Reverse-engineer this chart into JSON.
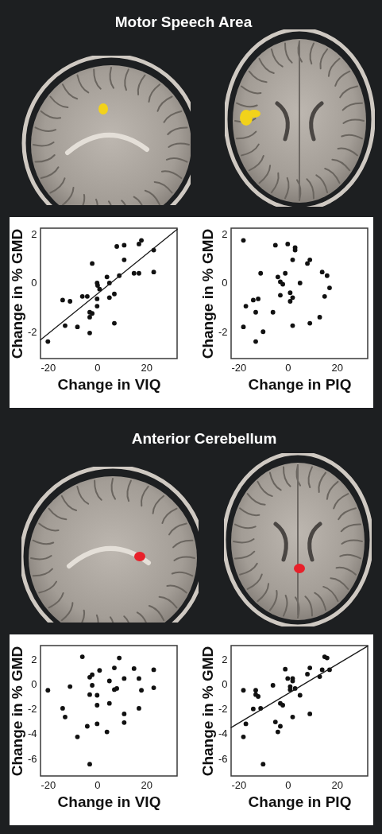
{
  "chart_data": [
    {
      "type": "scatter",
      "title": "Motor Speech Area",
      "xlabel": "Change in VIQ",
      "ylabel": "Change in % GMD",
      "xlim": [
        -23,
        32.5
      ],
      "ylim": [
        -3.1,
        2.25
      ],
      "xticks": [
        -20,
        0,
        20
      ],
      "yticks": [
        -2,
        0,
        2
      ],
      "marker": "circle",
      "series": [
        {
          "color": "#111111",
          "x": [
            -20,
            -14,
            -11,
            -13,
            -8,
            -6,
            -4,
            -2,
            -3,
            -3,
            -2,
            -3,
            0,
            0.2,
            1,
            0,
            0,
            4,
            5,
            5,
            7,
            7,
            9,
            8,
            11,
            11,
            15,
            17,
            17,
            18,
            23,
            23
          ],
          "values": [
            -2.4,
            -0.7,
            -0.75,
            -1.75,
            -1.8,
            -0.55,
            -0.55,
            0.8,
            -2.05,
            -1.2,
            -1.25,
            -1.4,
            0,
            -0.1,
            -0.25,
            -0.65,
            -0.95,
            0.25,
            0,
            -0.6,
            -0.45,
            -1.65,
            0.3,
            1.5,
            1.55,
            0.95,
            0.4,
            0.4,
            1.6,
            1.75,
            1.35,
            0.45
          ]
        },
        {
          "type": "line",
          "marker": "none",
          "color": "#1a1a1a",
          "x": [
            -23,
            32.5
          ],
          "values": [
            -2.33,
            2.2
          ]
        }
      ]
    },
    {
      "type": "scatter",
      "xlabel": "Change in PIQ",
      "ylabel": "Change in % GMD",
      "xlim": [
        -23,
        32.5
      ],
      "ylim": [
        -3.1,
        2.25
      ],
      "xticks": [
        -20,
        0,
        20
      ],
      "yticks": [
        -2,
        0,
        2
      ],
      "marker": "circle",
      "series": [
        {
          "color": "#111111",
          "x": [
            -18,
            -5,
            0,
            3,
            3,
            2,
            -11,
            -4,
            -1,
            -3,
            -2,
            5,
            8,
            9,
            14,
            16,
            17,
            15,
            -3,
            1,
            2,
            1,
            -14,
            -12,
            -17,
            -13,
            -6,
            13,
            9,
            2,
            -18,
            -10,
            -13
          ],
          "values": [
            1.75,
            1.55,
            1.6,
            1.45,
            1.35,
            0.95,
            0.4,
            0.25,
            0.4,
            0.05,
            -0.05,
            0,
            0.8,
            0.95,
            0.45,
            0.3,
            -0.2,
            -0.55,
            -0.5,
            -0.4,
            -0.6,
            -0.75,
            -0.7,
            -0.65,
            -0.95,
            -1.2,
            -1.2,
            -1.4,
            -1.65,
            -1.75,
            -1.8,
            -2,
            -2.4
          ]
        }
      ]
    },
    {
      "type": "scatter",
      "title": "Anterior Cerebellum",
      "xlabel": "Change in VIQ",
      "ylabel": "Change in % GMD",
      "xlim": [
        -23,
        32.5
      ],
      "ylim": [
        -7.4,
        3.1
      ],
      "xticks": [
        -20,
        0,
        20
      ],
      "yticks": [
        -6,
        -4,
        -2,
        0,
        2
      ],
      "marker": "circle",
      "series": [
        {
          "color": "#111111",
          "x": [
            -20,
            -6,
            -11,
            -14,
            -13,
            -8,
            -4,
            -3,
            -3,
            -2,
            -2,
            -3,
            0,
            0,
            0,
            1,
            4,
            5,
            5,
            7,
            7,
            8,
            9,
            11,
            11,
            11,
            15,
            17,
            17,
            18,
            23,
            23
          ],
          "values": [
            -0.5,
            2.2,
            -0.2,
            -1.95,
            -2.65,
            -4.25,
            -3.4,
            -6.45,
            0.55,
            0.75,
            -0.1,
            -0.85,
            -0.9,
            -1.7,
            -3.2,
            1.1,
            -3.85,
            0.25,
            -1.55,
            1.3,
            -0.45,
            -0.35,
            2.1,
            0.45,
            -2.4,
            -3.1,
            1.25,
            0.45,
            -1.95,
            -0.5,
            1.15,
            -0.3
          ]
        }
      ]
    },
    {
      "type": "scatter",
      "xlabel": "Change in PIQ",
      "ylabel": "Change in % GMD",
      "xlim": [
        -23,
        32.5
      ],
      "ylim": [
        -7.4,
        3.1
      ],
      "xticks": [
        -20,
        0,
        20
      ],
      "yticks": [
        -6,
        -4,
        -2,
        0,
        2
      ],
      "marker": "circle",
      "series": [
        {
          "color": "#111111",
          "x": [
            -18,
            -18,
            -17,
            -14,
            -13,
            -13,
            -12,
            -11,
            -10,
            -6,
            -5,
            -3,
            -2,
            -3,
            -4,
            -1,
            0,
            1,
            1,
            2,
            2,
            3,
            2,
            5,
            8,
            9,
            9,
            13,
            14,
            15,
            16,
            17
          ],
          "values": [
            -0.5,
            -4.25,
            -3.2,
            -2,
            -0.5,
            -0.85,
            -1,
            -1.95,
            -6.45,
            -0.1,
            -3.05,
            -1.55,
            -1.7,
            -3.4,
            -3.85,
            1.2,
            0.45,
            -0.2,
            -0.45,
            0.45,
            0.25,
            -0.35,
            -2.65,
            -0.9,
            0.8,
            1.3,
            -2.4,
            0.6,
            1.15,
            2.2,
            2.1,
            1.15
          ]
        },
        {
          "type": "line",
          "marker": "none",
          "color": "#1a1a1a",
          "x": [
            -23,
            32.5
          ],
          "values": [
            -3.5,
            3.06
          ]
        }
      ]
    }
  ]
}
